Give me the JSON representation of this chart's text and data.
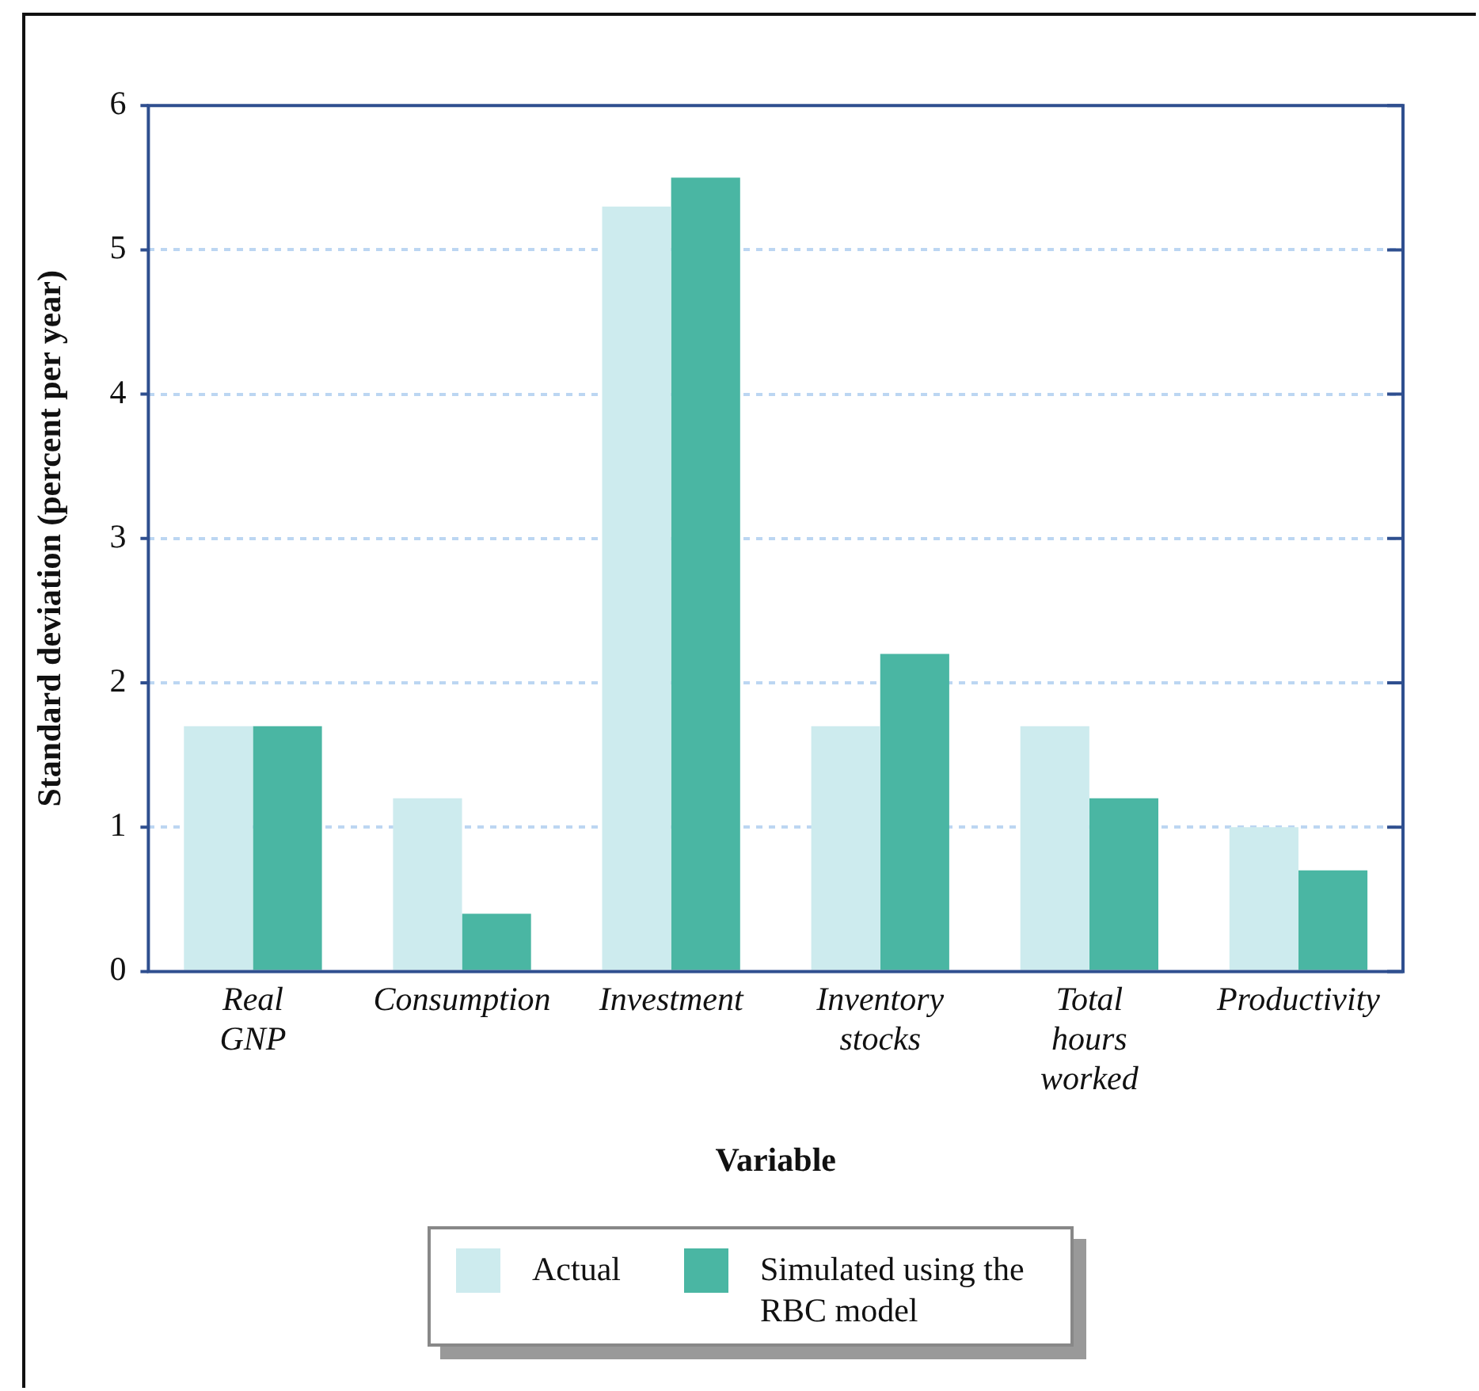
{
  "chart_data": {
    "type": "bar",
    "xlabel": "Variable",
    "ylabel": "Standard deviation (percent per year)",
    "categories": [
      "Real GNP",
      "Consumption",
      "Investment",
      "Inventory stocks",
      "Total hours worked",
      "Productivity"
    ],
    "series": [
      {
        "name": "Actual",
        "color": "#cdebee",
        "values": [
          1.7,
          1.2,
          5.3,
          1.7,
          1.7,
          1.0
        ]
      },
      {
        "name": "Simulated using the RBC model",
        "color": "#4ab6a3",
        "values": [
          1.7,
          0.4,
          5.5,
          2.2,
          1.2,
          0.7
        ]
      }
    ],
    "ylim": [
      0,
      6
    ],
    "yticks": [
      0,
      1,
      2,
      3,
      4,
      5,
      6
    ],
    "grid": "y",
    "legend": "bottom"
  }
}
